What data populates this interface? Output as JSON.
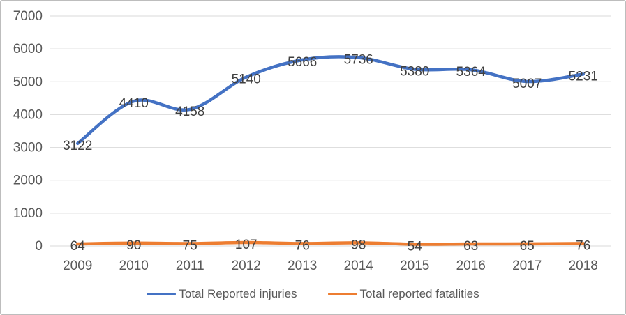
{
  "chart_data": {
    "type": "line",
    "title": "",
    "xlabel": "",
    "ylabel": "",
    "categories": [
      "2009",
      "2010",
      "2011",
      "2012",
      "2013",
      "2014",
      "2015",
      "2016",
      "2017",
      "2018"
    ],
    "series": [
      {
        "name": "Total Reported injuries",
        "color": "#4472C4",
        "values": [
          3122,
          4410,
          4158,
          5140,
          5666,
          5736,
          5380,
          5364,
          5007,
          5231
        ]
      },
      {
        "name": "Total reported fatalities",
        "color": "#ED7D31",
        "values": [
          64,
          90,
          75,
          107,
          76,
          98,
          54,
          63,
          65,
          76
        ]
      }
    ],
    "ylim": [
      0,
      7000
    ],
    "yticks": [
      0,
      1000,
      2000,
      3000,
      4000,
      5000,
      6000,
      7000
    ],
    "grid": true,
    "smooth_lines": true,
    "data_labels": true,
    "legend_position": "bottom"
  },
  "colors": {
    "gridline": "#D9D9D9",
    "axis_text": "#595959",
    "data_label_text": "#404040",
    "background": "#FFFFFF",
    "border": "#BDBDBD"
  }
}
